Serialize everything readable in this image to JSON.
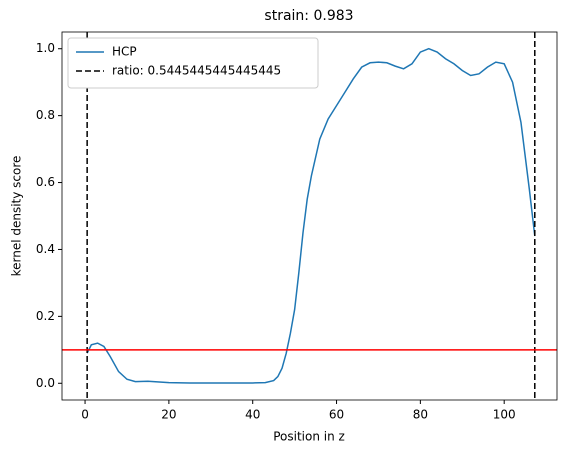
{
  "chart_data": {
    "type": "line",
    "title": "strain: 0.983",
    "xlabel": "Position in z",
    "ylabel": "kernel density score",
    "xlim": [
      -5.5,
      112.6
    ],
    "ylim": [
      -0.05,
      1.05
    ],
    "xticks": [
      0,
      20,
      40,
      60,
      80,
      100
    ],
    "yticks": [
      {
        "value": 0,
        "label": "0.0"
      },
      {
        "value": 0.2,
        "label": "0.2"
      },
      {
        "value": 0.4,
        "label": "0.4"
      },
      {
        "value": 0.6,
        "label": "0.6"
      },
      {
        "value": 0.8,
        "label": "0.8"
      },
      {
        "value": 1,
        "label": "1.0"
      }
    ],
    "legend": "upper left",
    "series": [
      {
        "name": "HCP",
        "color": "#1f77b4",
        "x": [
          0.5,
          1.5,
          3,
          4.5,
          6,
          8,
          10,
          12,
          15,
          20,
          25,
          30,
          35,
          40,
          43,
          45,
          46,
          47,
          48,
          49,
          50,
          51,
          52,
          53,
          54,
          56,
          58,
          60,
          62,
          64,
          66,
          68,
          70,
          72,
          74,
          76,
          78,
          80,
          82,
          84,
          86,
          88,
          90,
          92,
          94,
          96,
          98,
          100,
          102,
          104,
          106,
          107.3
        ],
        "values": [
          0.09,
          0.115,
          0.12,
          0.11,
          0.08,
          0.035,
          0.012,
          0.005,
          0.006,
          0.002,
          0.001,
          0.001,
          0.001,
          0.001,
          0.002,
          0.008,
          0.02,
          0.045,
          0.09,
          0.15,
          0.22,
          0.33,
          0.45,
          0.55,
          0.62,
          0.73,
          0.79,
          0.83,
          0.87,
          0.91,
          0.945,
          0.958,
          0.96,
          0.958,
          0.948,
          0.94,
          0.955,
          0.99,
          1.0,
          0.99,
          0.97,
          0.955,
          0.935,
          0.92,
          0.925,
          0.945,
          0.96,
          0.955,
          0.9,
          0.78,
          0.58,
          0.44
        ]
      }
    ],
    "vlines": {
      "name": "ratio: 0.5445445445445445",
      "color": "#000000",
      "dashed": true,
      "values": [
        0.5,
        107.3
      ]
    },
    "hline": {
      "color": "#ff0000",
      "value": 0.1
    }
  }
}
